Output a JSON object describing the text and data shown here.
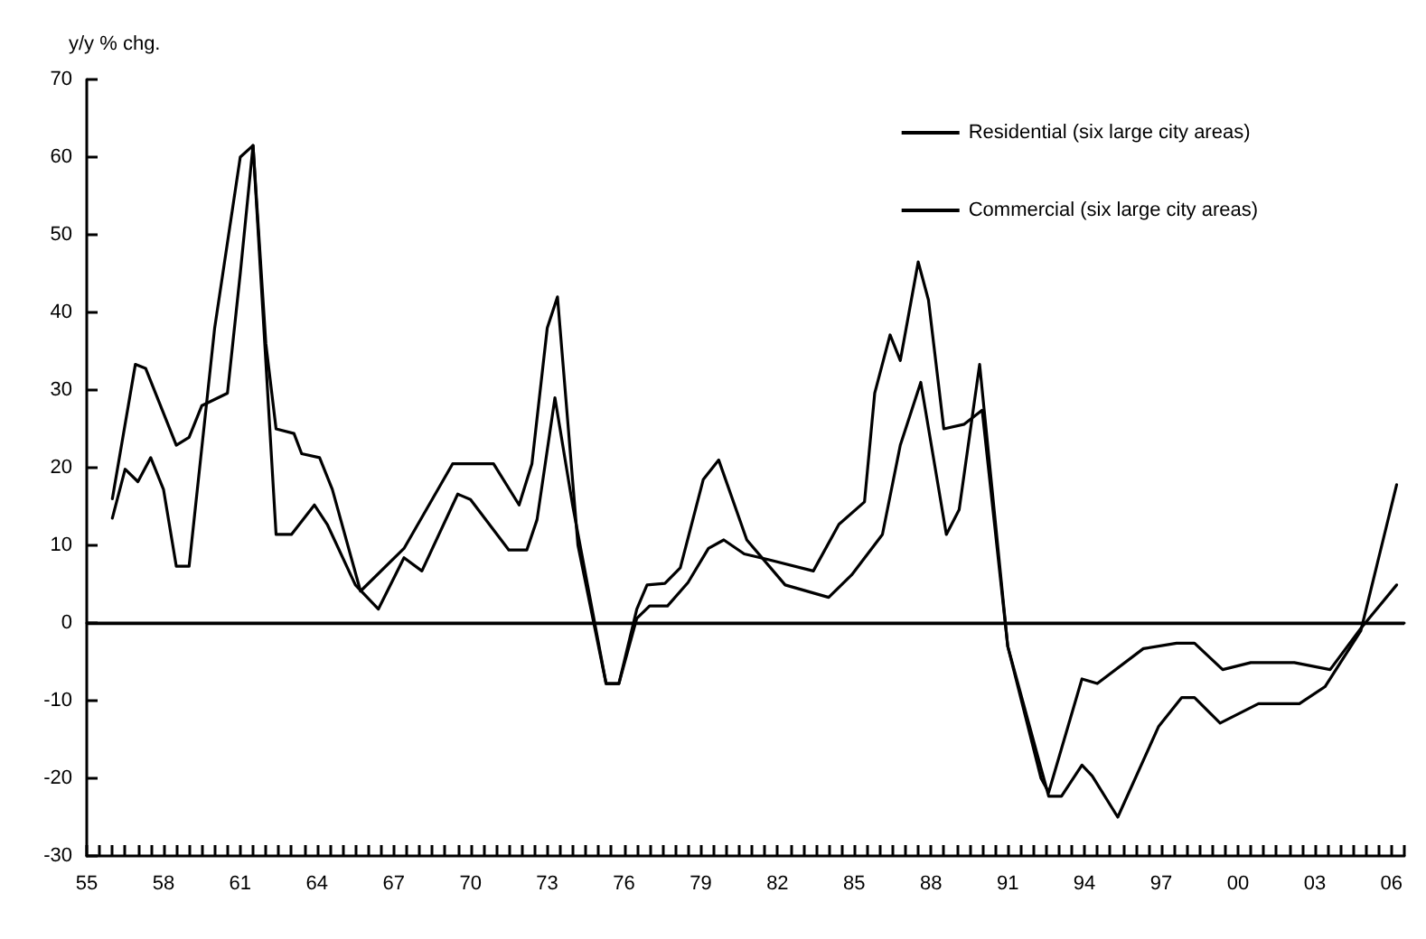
{
  "chart_data": {
    "type": "line",
    "ylabel": "y/y % chg.",
    "xlim": [
      1955,
      2006.5
    ],
    "ylim": [
      -30,
      70
    ],
    "yticks": [
      -30,
      -20,
      -10,
      0,
      10,
      20,
      30,
      40,
      50,
      60,
      70
    ],
    "xticks": [
      {
        "value": 1955,
        "label": "55"
      },
      {
        "value": 1955.5,
        "label": null
      },
      {
        "value": 1956,
        "label": null
      },
      {
        "value": 1956.5,
        "label": null
      },
      {
        "value": 1957,
        "label": null
      },
      {
        "value": 1957.5,
        "label": null
      },
      {
        "value": 1958,
        "label": "58"
      },
      {
        "value": 1958.5,
        "label": null
      },
      {
        "value": 1959,
        "label": null
      },
      {
        "value": 1959.5,
        "label": null
      },
      {
        "value": 1960,
        "label": null
      },
      {
        "value": 1960.5,
        "label": null
      },
      {
        "value": 1961,
        "label": "61"
      },
      {
        "value": 1961.5,
        "label": null
      },
      {
        "value": 1962,
        "label": null
      },
      {
        "value": 1962.5,
        "label": null
      },
      {
        "value": 1963,
        "label": null
      },
      {
        "value": 1963.5,
        "label": null
      },
      {
        "value": 1964,
        "label": "64"
      },
      {
        "value": 1964.5,
        "label": null
      },
      {
        "value": 1965,
        "label": null
      },
      {
        "value": 1965.5,
        "label": null
      },
      {
        "value": 1966,
        "label": null
      },
      {
        "value": 1966.5,
        "label": null
      },
      {
        "value": 1967,
        "label": "67"
      },
      {
        "value": 1967.5,
        "label": null
      },
      {
        "value": 1968,
        "label": null
      },
      {
        "value": 1968.5,
        "label": null
      },
      {
        "value": 1969,
        "label": null
      },
      {
        "value": 1969.5,
        "label": null
      },
      {
        "value": 1970,
        "label": "70"
      },
      {
        "value": 1970.5,
        "label": null
      },
      {
        "value": 1971,
        "label": null
      },
      {
        "value": 1971.5,
        "label": null
      },
      {
        "value": 1972,
        "label": null
      },
      {
        "value": 1972.5,
        "label": null
      },
      {
        "value": 1973,
        "label": "73"
      },
      {
        "value": 1973.5,
        "label": null
      },
      {
        "value": 1974,
        "label": null
      },
      {
        "value": 1974.5,
        "label": null
      },
      {
        "value": 1975,
        "label": null
      },
      {
        "value": 1975.5,
        "label": null
      },
      {
        "value": 1976,
        "label": "76"
      },
      {
        "value": 1976.5,
        "label": null
      },
      {
        "value": 1977,
        "label": null
      },
      {
        "value": 1977.5,
        "label": null
      },
      {
        "value": 1978,
        "label": null
      },
      {
        "value": 1978.5,
        "label": null
      },
      {
        "value": 1979,
        "label": "79"
      },
      {
        "value": 1979.5,
        "label": null
      },
      {
        "value": 1980,
        "label": null
      },
      {
        "value": 1980.5,
        "label": null
      },
      {
        "value": 1981,
        "label": null
      },
      {
        "value": 1981.5,
        "label": null
      },
      {
        "value": 1982,
        "label": "82"
      },
      {
        "value": 1982.5,
        "label": null
      },
      {
        "value": 1983,
        "label": null
      },
      {
        "value": 1983.5,
        "label": null
      },
      {
        "value": 1984,
        "label": null
      },
      {
        "value": 1984.5,
        "label": null
      },
      {
        "value": 1985,
        "label": "85"
      },
      {
        "value": 1985.5,
        "label": null
      },
      {
        "value": 1986,
        "label": null
      },
      {
        "value": 1986.5,
        "label": null
      },
      {
        "value": 1987,
        "label": null
      },
      {
        "value": 1987.5,
        "label": null
      },
      {
        "value": 1988,
        "label": "88"
      },
      {
        "value": 1988.5,
        "label": null
      },
      {
        "value": 1989,
        "label": null
      },
      {
        "value": 1989.5,
        "label": null
      },
      {
        "value": 1990,
        "label": null
      },
      {
        "value": 1990.5,
        "label": null
      },
      {
        "value": 1991,
        "label": "91"
      },
      {
        "value": 1991.5,
        "label": null
      },
      {
        "value": 1992,
        "label": null
      },
      {
        "value": 1992.5,
        "label": null
      },
      {
        "value": 1993,
        "label": null
      },
      {
        "value": 1993.5,
        "label": null
      },
      {
        "value": 1994,
        "label": "94"
      },
      {
        "value": 1994.5,
        "label": null
      },
      {
        "value": 1995,
        "label": null
      },
      {
        "value": 1995.5,
        "label": null
      },
      {
        "value": 1996,
        "label": null
      },
      {
        "value": 1996.5,
        "label": null
      },
      {
        "value": 1997,
        "label": "97"
      },
      {
        "value": 1997.5,
        "label": null
      },
      {
        "value": 1998,
        "label": null
      },
      {
        "value": 1998.5,
        "label": null
      },
      {
        "value": 1999,
        "label": null
      },
      {
        "value": 1999.5,
        "label": null
      },
      {
        "value": 2000,
        "label": "00"
      },
      {
        "value": 2000.5,
        "label": null
      },
      {
        "value": 2001,
        "label": null
      },
      {
        "value": 2001.5,
        "label": null
      },
      {
        "value": 2002,
        "label": null
      },
      {
        "value": 2002.5,
        "label": null
      },
      {
        "value": 2003,
        "label": "03"
      },
      {
        "value": 2003.5,
        "label": null
      },
      {
        "value": 2004,
        "label": null
      },
      {
        "value": 2004.5,
        "label": null
      },
      {
        "value": 2005,
        "label": null
      },
      {
        "value": 2005.5,
        "label": null
      },
      {
        "value": 2006,
        "label": "06"
      },
      {
        "value": 2006.5,
        "label": null
      }
    ],
    "ref_lines": [
      {
        "axis": "y",
        "value": 0,
        "color": "#000000"
      }
    ],
    "legend": "top right",
    "grid": false,
    "marker": "none",
    "line_style": "solid",
    "series": [
      {
        "name": "Residential (six large city areas)",
        "color": "#000000",
        "x": [
          1956,
          1956.9,
          1957.3,
          1958.5,
          1959,
          1959.5,
          1960.5,
          1961,
          1961.5,
          1962,
          1962.4,
          1963.1,
          1963.4,
          1964.1,
          1964.6,
          1965.7,
          1967.4,
          1969.3,
          1970.9,
          1971.9,
          1972.4,
          1973,
          1973.4,
          1974.2,
          1975.3,
          1975.8,
          1976.5,
          1976.9,
          1977.6,
          1978.2,
          1979.1,
          1979.7,
          1980.8,
          1982.3,
          1984,
          1984.9,
          1986.1,
          1986.8,
          1987.6,
          1988.6,
          1989.1,
          1989.9,
          1991,
          1992.3,
          1992.6,
          1993.9,
          1994.5,
          1996.3,
          1997.6,
          1998.3,
          1999.4,
          2000.5,
          2002.2,
          2003.6,
          2004.8,
          2006.2
        ],
        "values": [
          16,
          33.3,
          32.8,
          22.9,
          23.9,
          28,
          29.6,
          45,
          61.5,
          36,
          25,
          24.4,
          21.8,
          21.3,
          17.2,
          4.1,
          9.6,
          20.5,
          20.5,
          15.2,
          20.5,
          38,
          42,
          10,
          -7.8,
          -7.8,
          1.8,
          4.9,
          5.1,
          7.1,
          18.5,
          21,
          10.7,
          4.9,
          3.3,
          6.2,
          11.4,
          22.9,
          31,
          11.4,
          14.6,
          33.3,
          -3,
          -20,
          -21.8,
          -7.2,
          -7.8,
          -3.3,
          -2.6,
          -2.6,
          -6,
          -5.1,
          -5.1,
          -6,
          -0.7,
          4.9
        ]
      },
      {
        "name": "Commercial (six large city areas)",
        "color": "#000000",
        "x": [
          1956,
          1956.5,
          1957,
          1957.5,
          1958,
          1958.5,
          1959,
          1960,
          1961,
          1961.5,
          1962.4,
          1963,
          1963.9,
          1964.4,
          1965.5,
          1966.4,
          1967.4,
          1968.1,
          1969.5,
          1970,
          1971.5,
          1972.2,
          1972.6,
          1973.3,
          1974,
          1975.3,
          1975.8,
          1976.5,
          1977,
          1977.7,
          1978.5,
          1979.3,
          1979.9,
          1980.7,
          1981.6,
          1983.4,
          1984.4,
          1985.4,
          1985.8,
          1986.4,
          1986.8,
          1987.5,
          1987.9,
          1988.5,
          1989.3,
          1990,
          1991,
          1992.3,
          1992.6,
          1993.1,
          1993.9,
          1994.3,
          1995.3,
          1996.9,
          1997.8,
          1998.3,
          1999.3,
          2000.8,
          2002.4,
          2003.4,
          2004.8,
          2006.2
        ],
        "values": [
          13.5,
          19.8,
          18.2,
          21.3,
          17.2,
          7.3,
          7.3,
          38,
          60,
          61.5,
          11.4,
          11.4,
          15.2,
          12.7,
          4.9,
          1.8,
          8.4,
          6.7,
          16.6,
          15.9,
          9.4,
          9.4,
          13.3,
          29,
          15,
          -7.8,
          -7.8,
          0.6,
          2.2,
          2.2,
          5.2,
          9.6,
          10.7,
          8.9,
          8.2,
          6.7,
          12.7,
          15.6,
          29.6,
          37.1,
          33.8,
          46.5,
          41.6,
          25,
          25.6,
          27.4,
          -3,
          -18.7,
          -22.3,
          -22.3,
          -18.3,
          -19.7,
          -25,
          -13.3,
          -9.6,
          -9.6,
          -12.9,
          -10.4,
          -10.4,
          -8.2,
          -1,
          17.8
        ]
      }
    ]
  }
}
